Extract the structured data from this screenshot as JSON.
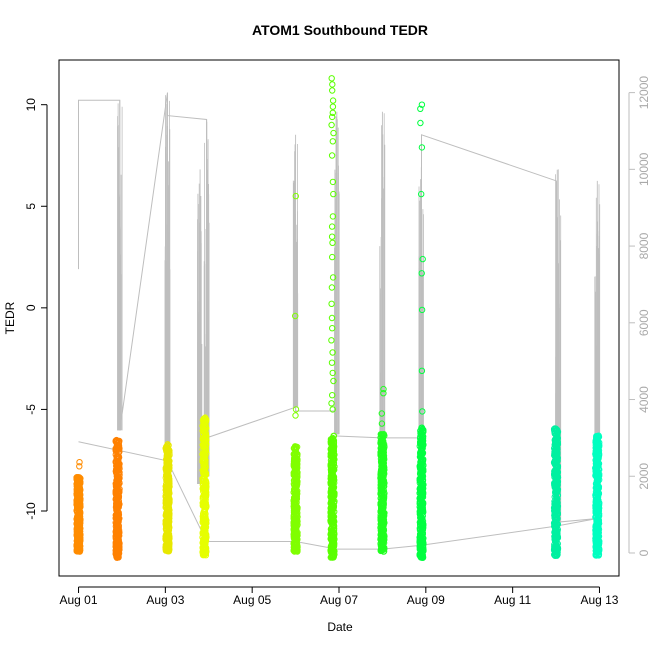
{
  "chart_data": {
    "type": "scatter",
    "title": "ATOM1 Southbound TEDR",
    "xlabel": "Date",
    "ylabel": "TEDR",
    "x_ticks": [
      "Aug 01",
      "Aug 03",
      "Aug 05",
      "Aug 07",
      "Aug 09",
      "Aug 11",
      "Aug 13"
    ],
    "x_tick_days": [
      1,
      3,
      5,
      7,
      9,
      11,
      13
    ],
    "xlim_days": [
      0.55,
      13.45
    ],
    "ylim": [
      -13.2,
      12.2
    ],
    "y_ticks": [
      -10,
      -5,
      0,
      5,
      10
    ],
    "y2_ticks": [
      0,
      2000,
      4000,
      6000,
      8000,
      10000,
      12000
    ],
    "y2lim": [
      -600,
      12850
    ],
    "secondary_axis_color": "#bebebe",
    "grid": false,
    "points": [
      {
        "day": 1.0,
        "color": "#ff8c00",
        "y_min": -12.0,
        "y_max": -8.3,
        "outliers": [
          -7.6,
          -7.8
        ]
      },
      {
        "day": 1.9,
        "color": "#ff8000",
        "y_min": -12.3,
        "y_max": -6.5,
        "outliers": []
      },
      {
        "day": 3.05,
        "color": "#e8e800",
        "y_min": -12.0,
        "y_max": -6.7,
        "outliers": []
      },
      {
        "day": 3.9,
        "color": "#e6ff00",
        "y_min": -12.2,
        "y_max": -5.4,
        "outliers": []
      },
      {
        "day": 6.0,
        "color": "#80ff00",
        "y_min": -12.0,
        "y_max": -6.8,
        "outliers": [
          5.5,
          -0.4,
          -5.0,
          -5.3
        ]
      },
      {
        "day": 6.85,
        "color": "#5aff00",
        "y_min": -12.3,
        "y_max": -6.3,
        "outliers": [
          11.3,
          11.0,
          10.7,
          10.2,
          9.9,
          9.6,
          9.4,
          9.0,
          8.6,
          8.2,
          7.5,
          6.2,
          5.6,
          4.5,
          4.0,
          3.5,
          3.2,
          2.5,
          1.5,
          1.0,
          0.2,
          -0.5,
          -1.0,
          -1.6,
          -2.2,
          -2.7,
          -3.2,
          -3.6,
          -4.3,
          -4.7,
          -5.0
        ]
      },
      {
        "day": 8.0,
        "color": "#20ff20",
        "y_min": -12.0,
        "y_max": -6.2,
        "outliers": [
          -4.0,
          -4.2,
          -5.2,
          -5.7
        ]
      },
      {
        "day": 8.9,
        "color": "#00ff40",
        "y_min": -12.3,
        "y_max": -5.9,
        "outliers": [
          10.0,
          9.8,
          9.1,
          7.9,
          5.6,
          2.4,
          1.7,
          -0.1,
          -3.1,
          -5.1
        ]
      },
      {
        "day": 12.0,
        "color": "#00f0a0",
        "y_min": -12.2,
        "y_max": -5.9,
        "outliers": []
      },
      {
        "day": 12.95,
        "color": "#00ffc0",
        "y_min": -12.2,
        "y_max": -6.2,
        "outliers": []
      }
    ],
    "secondary_line": [
      [
        1.0,
        7400
      ],
      [
        1.0,
        11800
      ],
      [
        1.95,
        11800
      ],
      [
        1.95,
        3200
      ],
      [
        3.05,
        12000
      ],
      [
        3.05,
        11400
      ],
      [
        3.95,
        11300
      ],
      [
        3.95,
        3000
      ],
      [
        6.0,
        3800
      ],
      [
        6.0,
        3700
      ],
      [
        6.95,
        3700
      ],
      [
        6.95,
        3050
      ],
      [
        8.0,
        3000
      ],
      [
        8.9,
        3000
      ],
      [
        8.9,
        10900
      ],
      [
        12.0,
        9700
      ],
      [
        12.0,
        800
      ],
      [
        12.95,
        900
      ],
      [
        12.95,
        3000
      ]
    ],
    "secondary_line_low": [
      [
        1.0,
        2900
      ],
      [
        3.05,
        2400
      ],
      [
        3.95,
        300
      ],
      [
        6.0,
        300
      ],
      [
        6.95,
        100
      ],
      [
        8.0,
        100
      ],
      [
        8.9,
        200
      ],
      [
        12.0,
        700
      ],
      [
        12.95,
        900
      ]
    ],
    "secondary_spikes": [
      {
        "day": 1.95,
        "peak": 11800,
        "base": 3200
      },
      {
        "day": 3.05,
        "peak": 12000,
        "base": 1500
      },
      {
        "day": 3.8,
        "peak": 10000,
        "base": 1800
      },
      {
        "day": 3.95,
        "peak": 11300,
        "base": 2000
      },
      {
        "day": 6.0,
        "peak": 10900,
        "base": 3800
      },
      {
        "day": 6.95,
        "peak": 11500,
        "base": 3100
      },
      {
        "day": 8.0,
        "peak": 11500,
        "base": 1000
      },
      {
        "day": 8.9,
        "peak": 10900,
        "base": 1200
      },
      {
        "day": 12.05,
        "peak": 10000,
        "base": 800
      },
      {
        "day": 12.95,
        "peak": 9700,
        "base": 900
      }
    ]
  }
}
